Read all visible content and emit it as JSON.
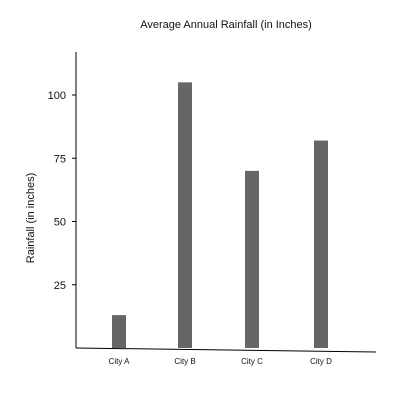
{
  "chart_data": {
    "type": "bar",
    "title": "Average Annual Rainfall (in Inches)",
    "xlabel": "",
    "ylabel": "Rainfall (in inches)",
    "categories": [
      "City A",
      "City B",
      "City C",
      "City D"
    ],
    "values": [
      13,
      105,
      70,
      82
    ],
    "yticks": [
      25,
      50,
      75,
      100
    ],
    "ylim": [
      0,
      117
    ],
    "grid": false,
    "colors": {
      "bar": "#666666",
      "axis": "#000000",
      "text": "#111111"
    }
  }
}
